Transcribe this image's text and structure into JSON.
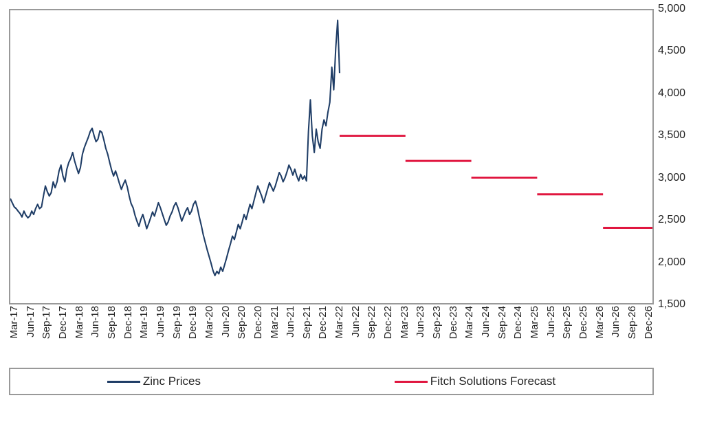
{
  "chart": {
    "type": "line",
    "background_color": "#ffffff",
    "border_color": "#999999",
    "aspect_width": 1000,
    "aspect_height": 430,
    "y_axis": {
      "min": 1500,
      "max": 5000,
      "tick_step": 500,
      "ticks": [
        1500,
        2000,
        2500,
        3000,
        3500,
        4000,
        4500,
        5000
      ],
      "font_size": 16,
      "color": "#222222",
      "position": "right"
    },
    "x_axis": {
      "labels": [
        "Mar-17",
        "Jun-17",
        "Sep-17",
        "Dec-17",
        "Mar-18",
        "Jun-18",
        "Sep-18",
        "Dec-18",
        "Mar-19",
        "Jun-19",
        "Sep-19",
        "Dec-19",
        "Mar-20",
        "Jun-20",
        "Sep-20",
        "Dec-20",
        "Mar-21",
        "Jun-21",
        "Sep-21",
        "Dec-21",
        "Mar-22",
        "Jun-22",
        "Sep-22",
        "Dec-22",
        "Mar-23",
        "Jun-23",
        "Sep-23",
        "Dec-23",
        "Mar-24",
        "Jun-24",
        "Sep-24",
        "Dec-24",
        "Mar-25",
        "Jun-25",
        "Sep-25",
        "Dec-25",
        "Mar-26",
        "Jun-26",
        "Sep-26",
        "Dec-26"
      ],
      "font_size": 15,
      "color": "#222222",
      "rotation": -90
    },
    "series": {
      "zinc_prices": {
        "label": "Zinc Prices",
        "color": "#1f3d66",
        "line_width": 2.2,
        "x_start_month": 0,
        "points": [
          2750,
          2700,
          2650,
          2630,
          2600,
          2570,
          2530,
          2600,
          2550,
          2520,
          2540,
          2600,
          2560,
          2630,
          2680,
          2630,
          2650,
          2780,
          2900,
          2830,
          2780,
          2820,
          2950,
          2880,
          2950,
          3080,
          3150,
          3020,
          2950,
          3100,
          3180,
          3230,
          3300,
          3200,
          3120,
          3050,
          3120,
          3280,
          3360,
          3420,
          3480,
          3550,
          3590,
          3500,
          3430,
          3460,
          3560,
          3540,
          3450,
          3350,
          3280,
          3180,
          3090,
          3020,
          3080,
          3010,
          2930,
          2860,
          2920,
          2970,
          2890,
          2780,
          2690,
          2640,
          2550,
          2480,
          2420,
          2500,
          2560,
          2480,
          2390,
          2450,
          2520,
          2590,
          2540,
          2620,
          2700,
          2640,
          2570,
          2500,
          2430,
          2470,
          2540,
          2590,
          2660,
          2700,
          2640,
          2560,
          2480,
          2540,
          2600,
          2640,
          2560,
          2600,
          2680,
          2720,
          2640,
          2530,
          2430,
          2320,
          2230,
          2140,
          2060,
          1980,
          1890,
          1830,
          1880,
          1850,
          1930,
          1880,
          1960,
          2040,
          2130,
          2210,
          2300,
          2260,
          2350,
          2440,
          2390,
          2470,
          2560,
          2500,
          2590,
          2680,
          2630,
          2720,
          2810,
          2900,
          2840,
          2780,
          2700,
          2780,
          2860,
          2940,
          2890,
          2840,
          2900,
          2980,
          3060,
          3020,
          2950,
          3000,
          3070,
          3150,
          3100,
          3030,
          3100,
          3020,
          2960,
          3040,
          2980,
          3020,
          2960,
          3550,
          3930,
          3500,
          3300,
          3580,
          3430,
          3350,
          3580,
          3690,
          3620,
          3780,
          3900,
          4320,
          4050,
          4550,
          4880,
          4250
        ]
      },
      "fitch_forecast": {
        "label": "Fitch Solutions Forecast",
        "color": "#e0163f",
        "line_width": 3,
        "segments": [
          {
            "x_start_month": 20,
            "x_end_month": 24,
            "value": 3500
          },
          {
            "x_start_month": 24,
            "x_end_month": 28,
            "value": 3200
          },
          {
            "x_start_month": 28,
            "x_end_month": 32,
            "value": 3000
          },
          {
            "x_start_month": 32,
            "x_end_month": 36,
            "value": 2800
          },
          {
            "x_start_month": 36,
            "x_end_month": 40,
            "value": 2400
          }
        ]
      }
    },
    "legend": {
      "font_size": 17,
      "border_color": "#999999",
      "items": [
        {
          "label_path": "chart.series.zinc_prices.label",
          "color": "#1f3d66"
        },
        {
          "label_path": "chart.series.fitch_forecast.label",
          "color": "#e0163f"
        }
      ]
    }
  }
}
